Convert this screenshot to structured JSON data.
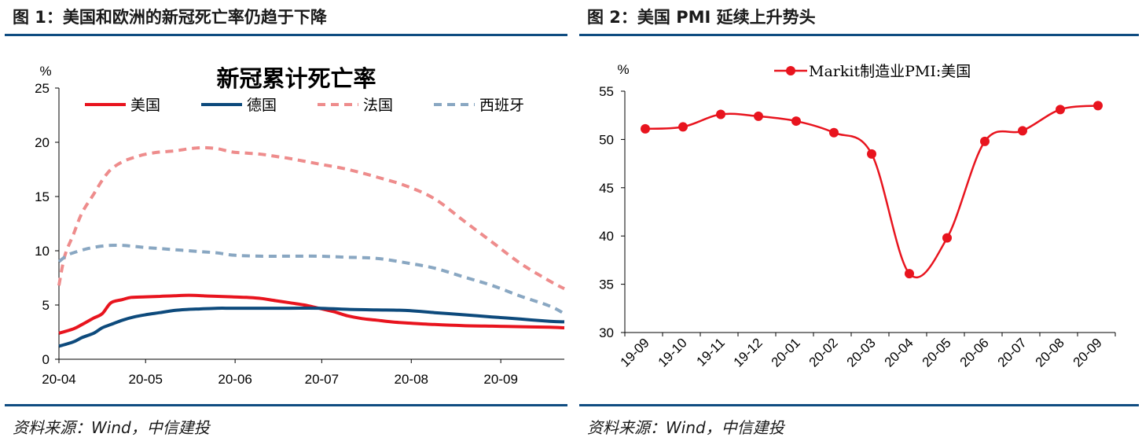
{
  "figures": [
    {
      "title": "图 1：美国和欧洲的新冠死亡率仍趋于下降",
      "source": "资料来源：Wind，中信建投"
    },
    {
      "title": "图 2：美国 PMI 延续上升势头",
      "source": "资料来源：Wind，中信建投"
    }
  ],
  "chart_data": [
    {
      "type": "line",
      "title": "新冠累计死亡率",
      "ylabel": "%",
      "ylim": [
        0,
        25
      ],
      "yticks": [
        "0",
        "5",
        "10",
        "15",
        "20",
        "25"
      ],
      "x_range_days": [
        0,
        175
      ],
      "xtick_labels": [
        "20-04",
        "20-05",
        "20-06",
        "20-07",
        "20-08",
        "20-09"
      ],
      "xtick_days": [
        0,
        30,
        61,
        91,
        122,
        153
      ],
      "series": [
        {
          "name": "美国",
          "color": "#e8141e",
          "dash": "",
          "width": 4,
          "x": [
            0,
            5,
            8,
            12,
            15,
            18,
            22,
            25,
            30,
            35,
            40,
            45,
            50,
            55,
            60,
            65,
            70,
            75,
            80,
            85,
            90,
            95,
            100,
            105,
            110,
            115,
            120,
            130,
            140,
            150,
            160,
            170,
            175
          ],
          "y": [
            2.4,
            2.8,
            3.2,
            3.8,
            4.2,
            5.2,
            5.5,
            5.7,
            5.75,
            5.8,
            5.85,
            5.9,
            5.85,
            5.8,
            5.75,
            5.7,
            5.6,
            5.4,
            5.2,
            5.0,
            4.7,
            4.4,
            4.0,
            3.75,
            3.6,
            3.45,
            3.35,
            3.2,
            3.1,
            3.05,
            3.0,
            2.95,
            2.9
          ]
        },
        {
          "name": "德国",
          "color": "#0d4a7c",
          "dash": "",
          "width": 4,
          "x": [
            0,
            5,
            8,
            12,
            15,
            18,
            22,
            26,
            30,
            35,
            40,
            45,
            50,
            55,
            60,
            70,
            80,
            90,
            100,
            110,
            120,
            130,
            140,
            150,
            160,
            170,
            175
          ],
          "y": [
            1.2,
            1.6,
            2.0,
            2.4,
            2.9,
            3.2,
            3.6,
            3.9,
            4.1,
            4.3,
            4.5,
            4.6,
            4.65,
            4.7,
            4.7,
            4.7,
            4.7,
            4.7,
            4.6,
            4.55,
            4.5,
            4.3,
            4.1,
            3.9,
            3.7,
            3.5,
            3.45
          ]
        },
        {
          "name": "法国",
          "color": "#ee8c8c",
          "dash": "10 7",
          "width": 4,
          "x": [
            0,
            2,
            5,
            8,
            12,
            15,
            18,
            22,
            26,
            30,
            35,
            40,
            45,
            50,
            55,
            60,
            65,
            70,
            75,
            80,
            90,
            100,
            110,
            120,
            130,
            140,
            150,
            160,
            170,
            175
          ],
          "y": [
            6.8,
            9.5,
            11.5,
            13.5,
            15.2,
            16.5,
            17.5,
            18.2,
            18.6,
            18.9,
            19.1,
            19.2,
            19.4,
            19.5,
            19.4,
            19.1,
            19.0,
            18.9,
            18.7,
            18.5,
            18.0,
            17.5,
            16.8,
            16.0,
            14.8,
            12.8,
            10.8,
            8.8,
            7.2,
            6.5
          ]
        },
        {
          "name": "西班牙",
          "color": "#89a7c2",
          "dash": "10 7",
          "width": 4,
          "x": [
            0,
            3,
            6,
            10,
            14,
            18,
            22,
            26,
            30,
            35,
            40,
            45,
            50,
            55,
            60,
            70,
            80,
            90,
            100,
            110,
            120,
            130,
            140,
            150,
            160,
            170,
            175
          ],
          "y": [
            9.0,
            9.6,
            9.9,
            10.2,
            10.4,
            10.5,
            10.5,
            10.4,
            10.3,
            10.2,
            10.1,
            10.0,
            9.9,
            9.8,
            9.6,
            9.5,
            9.5,
            9.5,
            9.4,
            9.3,
            8.9,
            8.4,
            7.6,
            6.8,
            5.8,
            4.9,
            4.2
          ]
        }
      ]
    },
    {
      "type": "line",
      "title": "",
      "ylabel": "%",
      "ylim": [
        30,
        55
      ],
      "yticks": [
        "30",
        "35",
        "40",
        "45",
        "50",
        "55"
      ],
      "categories": [
        "19-09",
        "19-10",
        "19-11",
        "19-12",
        "20-01",
        "20-02",
        "20-03",
        "20-04",
        "20-05",
        "20-06",
        "20-07",
        "20-08",
        "20-09"
      ],
      "series": [
        {
          "name": "Markit制造业PMI:美国",
          "color": "#e8141e",
          "values": [
            51.1,
            51.3,
            52.6,
            52.4,
            51.9,
            50.7,
            48.5,
            36.1,
            39.8,
            49.8,
            50.9,
            53.1,
            53.5
          ]
        }
      ]
    }
  ]
}
